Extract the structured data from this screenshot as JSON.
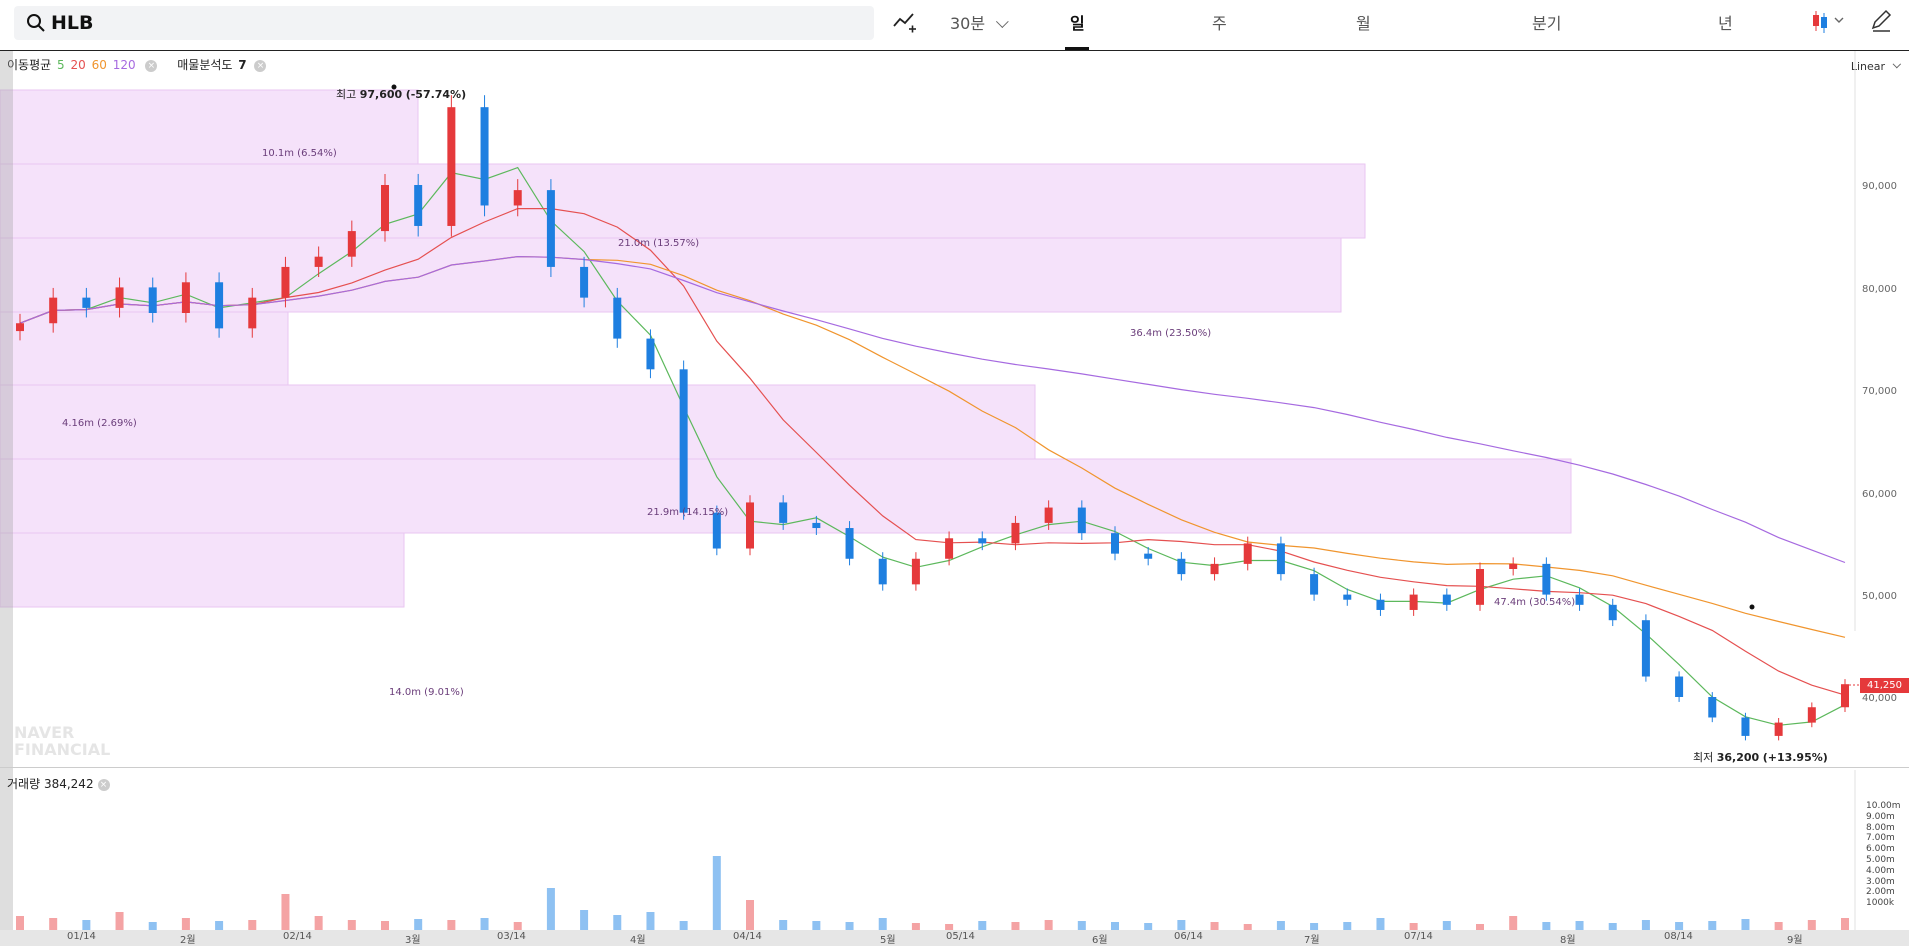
{
  "search": {
    "value": "HLB"
  },
  "toolbar": {
    "draw_icon": "chart-draw-icon",
    "interval_label": "30분",
    "tabs": [
      "일",
      "주",
      "월",
      "분기",
      "년"
    ],
    "active_tab": "일",
    "candle_icon": "candlestick-icon",
    "edit_icon": "pencil-icon"
  },
  "legend": {
    "ma_label": "이동평균",
    "ma_periods": [
      "5",
      "20",
      "60",
      "120"
    ],
    "ma_colors": [
      "#5cb85c",
      "#e55050",
      "#f0952e",
      "#a66ae0"
    ],
    "vp_label": "매물분석도",
    "vp_value": "7"
  },
  "scale_mode": "Linear",
  "price_axis": [
    "90,000",
    "80,000",
    "70,000",
    "60,000",
    "50,000",
    "40,000"
  ],
  "current_price": "41,250",
  "annotations": {
    "high_label": "최고",
    "high_value": "97,600",
    "high_pct": "(-57.74%)",
    "low_label": "최저",
    "low_value": "36,200",
    "low_pct": "(+13.95%)"
  },
  "volume_profile": [
    "10.1m (6.54%)",
    "21.0m (13.57%)",
    "36.4m (23.50%)",
    "4.16m (2.69%)",
    "21.9m (14.15%)",
    "47.4m (30.54%)",
    "14.0m (9.01%)"
  ],
  "volume": {
    "label": "거래량",
    "value": "384,242",
    "axis": [
      "10.00m",
      "9.00m",
      "8.00m",
      "7.00m",
      "6.00m",
      "5.00m",
      "4.00m",
      "3.00m",
      "2.00m",
      "1000k"
    ]
  },
  "x_axis": [
    "01/14",
    "2월",
    "02/14",
    "3월",
    "03/14",
    "4월",
    "04/14",
    "5월",
    "05/14",
    "6월",
    "06/14",
    "7월",
    "07/14",
    "8월",
    "08/14",
    "9월"
  ],
  "watermark": {
    "line1": "NAVER",
    "line2": "FINANCIAL"
  },
  "colors": {
    "up": "#e5393b",
    "down": "#1e7fe0",
    "profile": "#f3def8"
  },
  "chart_data": {
    "type": "candlestick",
    "ylim": [
      35000,
      98000
    ],
    "candles_approx_close": [
      76500,
      79000,
      78000,
      80000,
      77500,
      80500,
      76000,
      79000,
      82000,
      83000,
      85500,
      90000,
      86000,
      97600,
      88000,
      89500,
      82000,
      79000,
      75000,
      72000,
      58000,
      54500,
      59000,
      57000,
      56500,
      53500,
      51000,
      53500,
      55500,
      55000,
      57000,
      58500,
      56000,
      54000,
      53500,
      52000,
      53000,
      55000,
      52000,
      50000,
      49500,
      48500,
      50000,
      49000,
      52500,
      53000,
      50000,
      49000,
      47500,
      42000,
      40000,
      38000,
      36200,
      37500,
      39000,
      41250
    ]
  }
}
